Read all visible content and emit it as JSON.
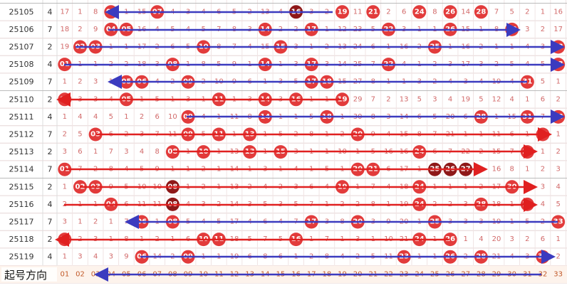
{
  "rows": [
    {
      "period": "25105",
      "count": "4",
      "cells": [
        "17",
        "1",
        "8",
        "04",
        "1",
        "15",
        "07",
        "4",
        "3",
        "4",
        "6",
        "5",
        "2",
        "13",
        "4",
        "16",
        "3",
        "2",
        "19",
        "11",
        "21",
        "2",
        "6",
        "24",
        "8",
        "26",
        "14",
        "28",
        "7",
        "5",
        "2",
        "1",
        "16"
      ],
      "dark": [
        "16"
      ]
    },
    {
      "period": "25106",
      "count": "7",
      "cells": [
        "18",
        "2",
        "9",
        "04",
        "05",
        "16",
        "4",
        "5",
        "4",
        "5",
        "7",
        "8",
        "3",
        "14",
        "2",
        "2",
        "17",
        "1",
        "12",
        "23",
        "5",
        "22",
        "3",
        "1",
        "1",
        "26",
        "15",
        "1",
        "8",
        "30",
        "3",
        "2",
        "17"
      ],
      "dark": []
    },
    {
      "period": "25107",
      "count": "2",
      "cells": [
        "19",
        "02",
        "03",
        "1",
        "1",
        "17",
        "2",
        "6",
        "5",
        "10",
        "8",
        "7",
        "4",
        "15",
        "15",
        "3",
        "1",
        "2",
        "13",
        "24",
        "6",
        "1",
        "16",
        "2",
        "25",
        "1",
        "16",
        "2",
        "1",
        "1",
        "4",
        "3",
        "33"
      ],
      "dark": []
    },
    {
      "period": "25108",
      "count": "4",
      "cells": [
        "01",
        "1",
        "1",
        "2",
        "2",
        "18",
        "3",
        "08",
        "1",
        "8",
        "5",
        "9",
        "1",
        "14",
        "1",
        "3",
        "17",
        "3",
        "14",
        "25",
        "7",
        "22",
        "4",
        "1",
        "2",
        "3",
        "17",
        "3",
        "2",
        "5",
        "4",
        "5",
        "33"
      ],
      "dark": []
    },
    {
      "period": "25109",
      "count": "7",
      "cells": [
        "1",
        "2",
        "3",
        "1",
        "05",
        "06",
        "4",
        "2",
        "09",
        "2",
        "10",
        "9",
        "6",
        "1",
        "3",
        "5",
        "17",
        "18",
        "15",
        "27",
        "8",
        "1",
        "1",
        "3",
        "2",
        "4",
        "3",
        "4",
        "19",
        "4",
        "31",
        "5",
        "1"
      ],
      "dark": []
    },
    {
      "period": "25110",
      "count": "2",
      "cells": [
        "01",
        "3",
        "3",
        "4",
        "05",
        "1",
        "5",
        "1",
        "3",
        "1",
        "11",
        "1",
        "3",
        "14",
        "3",
        "16",
        "1",
        "1",
        "19",
        "29",
        "7",
        "2",
        "13",
        "5",
        "3",
        "4",
        "19",
        "5",
        "12",
        "4",
        "1",
        "6",
        "2"
      ],
      "dark": []
    },
    {
      "period": "25111",
      "count": "4",
      "cells": [
        "1",
        "4",
        "4",
        "5",
        "1",
        "2",
        "6",
        "10",
        "09",
        "4",
        "1",
        "11",
        "8",
        "14",
        "1",
        "1",
        "5",
        "18",
        "1",
        "30",
        "8",
        "3",
        "14",
        "6",
        "5",
        "20",
        "6",
        "28",
        "1",
        "15",
        "31",
        "7",
        "33"
      ],
      "dark": []
    },
    {
      "period": "25112",
      "count": "7",
      "cells": [
        "2",
        "5",
        "03",
        "6",
        "2",
        "3",
        "7",
        "11",
        "09",
        "5",
        "11",
        "1",
        "13",
        "1",
        "5",
        "2",
        "8",
        "1",
        "2",
        "20",
        "9",
        "4",
        "15",
        "8",
        "7",
        "21",
        "1",
        "1",
        "11",
        "6",
        "1",
        "32",
        "1"
      ],
      "dark": []
    },
    {
      "period": "25113",
      "count": "2",
      "cells": [
        "3",
        "6",
        "1",
        "7",
        "3",
        "4",
        "8",
        "08",
        "1",
        "10",
        "1",
        "13",
        "13",
        "1",
        "15",
        "3",
        "1",
        "1",
        "10",
        "1",
        "5",
        "16",
        "16",
        "24",
        "6",
        "7",
        "22",
        "2",
        "15",
        "7",
        "31",
        "1",
        "2"
      ],
      "dark": []
    },
    {
      "period": "25114",
      "count": "7",
      "cells": [
        "01",
        "7",
        "2",
        "8",
        "4",
        "5",
        "9",
        "1",
        "1",
        "2",
        "1",
        "14",
        "1",
        "3",
        "1",
        "4",
        "1",
        "5",
        "1",
        "20",
        "21",
        "6",
        "17",
        "1",
        "25",
        "26",
        "27",
        "1",
        "16",
        "8",
        "1",
        "2",
        "3"
      ],
      "dark": [
        "25",
        "26",
        "27"
      ]
    },
    {
      "period": "25115",
      "count": "2",
      "cells": [
        "1",
        "02",
        "03",
        "9",
        "5",
        "10",
        "10",
        "08",
        "1",
        "2",
        "1",
        "13",
        "2",
        "4",
        "2",
        "3",
        "6",
        "4",
        "19",
        "1",
        "7",
        "4",
        "18",
        "24",
        "1",
        "1",
        "1",
        "2",
        "17",
        "30",
        "2",
        "3",
        "4"
      ],
      "dark": [
        "08"
      ]
    },
    {
      "period": "25116",
      "count": "4",
      "cells": [
        "2",
        "1",
        "1",
        "04",
        "6",
        "11",
        "11",
        "08",
        "4",
        "3",
        "2",
        "14",
        "3",
        "5",
        "3",
        "5",
        "7",
        "1",
        "2",
        "2",
        "8",
        "1",
        "19",
        "24",
        "2",
        "2",
        "3",
        "28",
        "18",
        "1",
        "31",
        "4",
        "5"
      ],
      "dark": [
        "08"
      ]
    },
    {
      "period": "25117",
      "count": "7",
      "cells": [
        "3",
        "1",
        "2",
        "1",
        "7",
        "06",
        "1",
        "08",
        "5",
        "4",
        "5",
        "17",
        "4",
        "6",
        "4",
        "7",
        "17",
        "3",
        "8",
        "20",
        "3",
        "9",
        "20",
        "1",
        "25",
        "3",
        "3",
        "3",
        "19",
        "1",
        "5",
        "2",
        "33"
      ],
      "dark": []
    },
    {
      "period": "25118",
      "count": "2",
      "cells": [
        "01",
        "2",
        "3",
        "1",
        "8",
        "1",
        "2",
        "1",
        "6",
        "10",
        "11",
        "18",
        "5",
        "7",
        "5",
        "16",
        "1",
        "7",
        "1",
        "3",
        "1",
        "10",
        "21",
        "24",
        "1",
        "26",
        "1",
        "4",
        "20",
        "3",
        "2",
        "6",
        "1"
      ],
      "dark": []
    },
    {
      "period": "25119",
      "count": "4",
      "cells": [
        "1",
        "3",
        "4",
        "3",
        "9",
        "06",
        "14",
        "2",
        "09",
        "1",
        "1",
        "19",
        "6",
        "8",
        "6",
        "1",
        "2",
        "8",
        "4",
        "2",
        "5",
        "11",
        "23",
        "1",
        "1",
        "26",
        "2",
        "28",
        "21",
        "4",
        "3",
        "32",
        "2"
      ],
      "dark": []
    }
  ],
  "footer": {
    "label": "起号方向",
    "columns": [
      "01",
      "02",
      "03",
      "04",
      "05",
      "06",
      "07",
      "08",
      "09",
      "10",
      "11",
      "12",
      "13",
      "14",
      "15",
      "16",
      "17",
      "18",
      "19",
      "20",
      "21",
      "22",
      "23",
      "24",
      "25",
      "26",
      "27",
      "28",
      "29",
      "30",
      "31",
      "32",
      "33"
    ]
  }
}
